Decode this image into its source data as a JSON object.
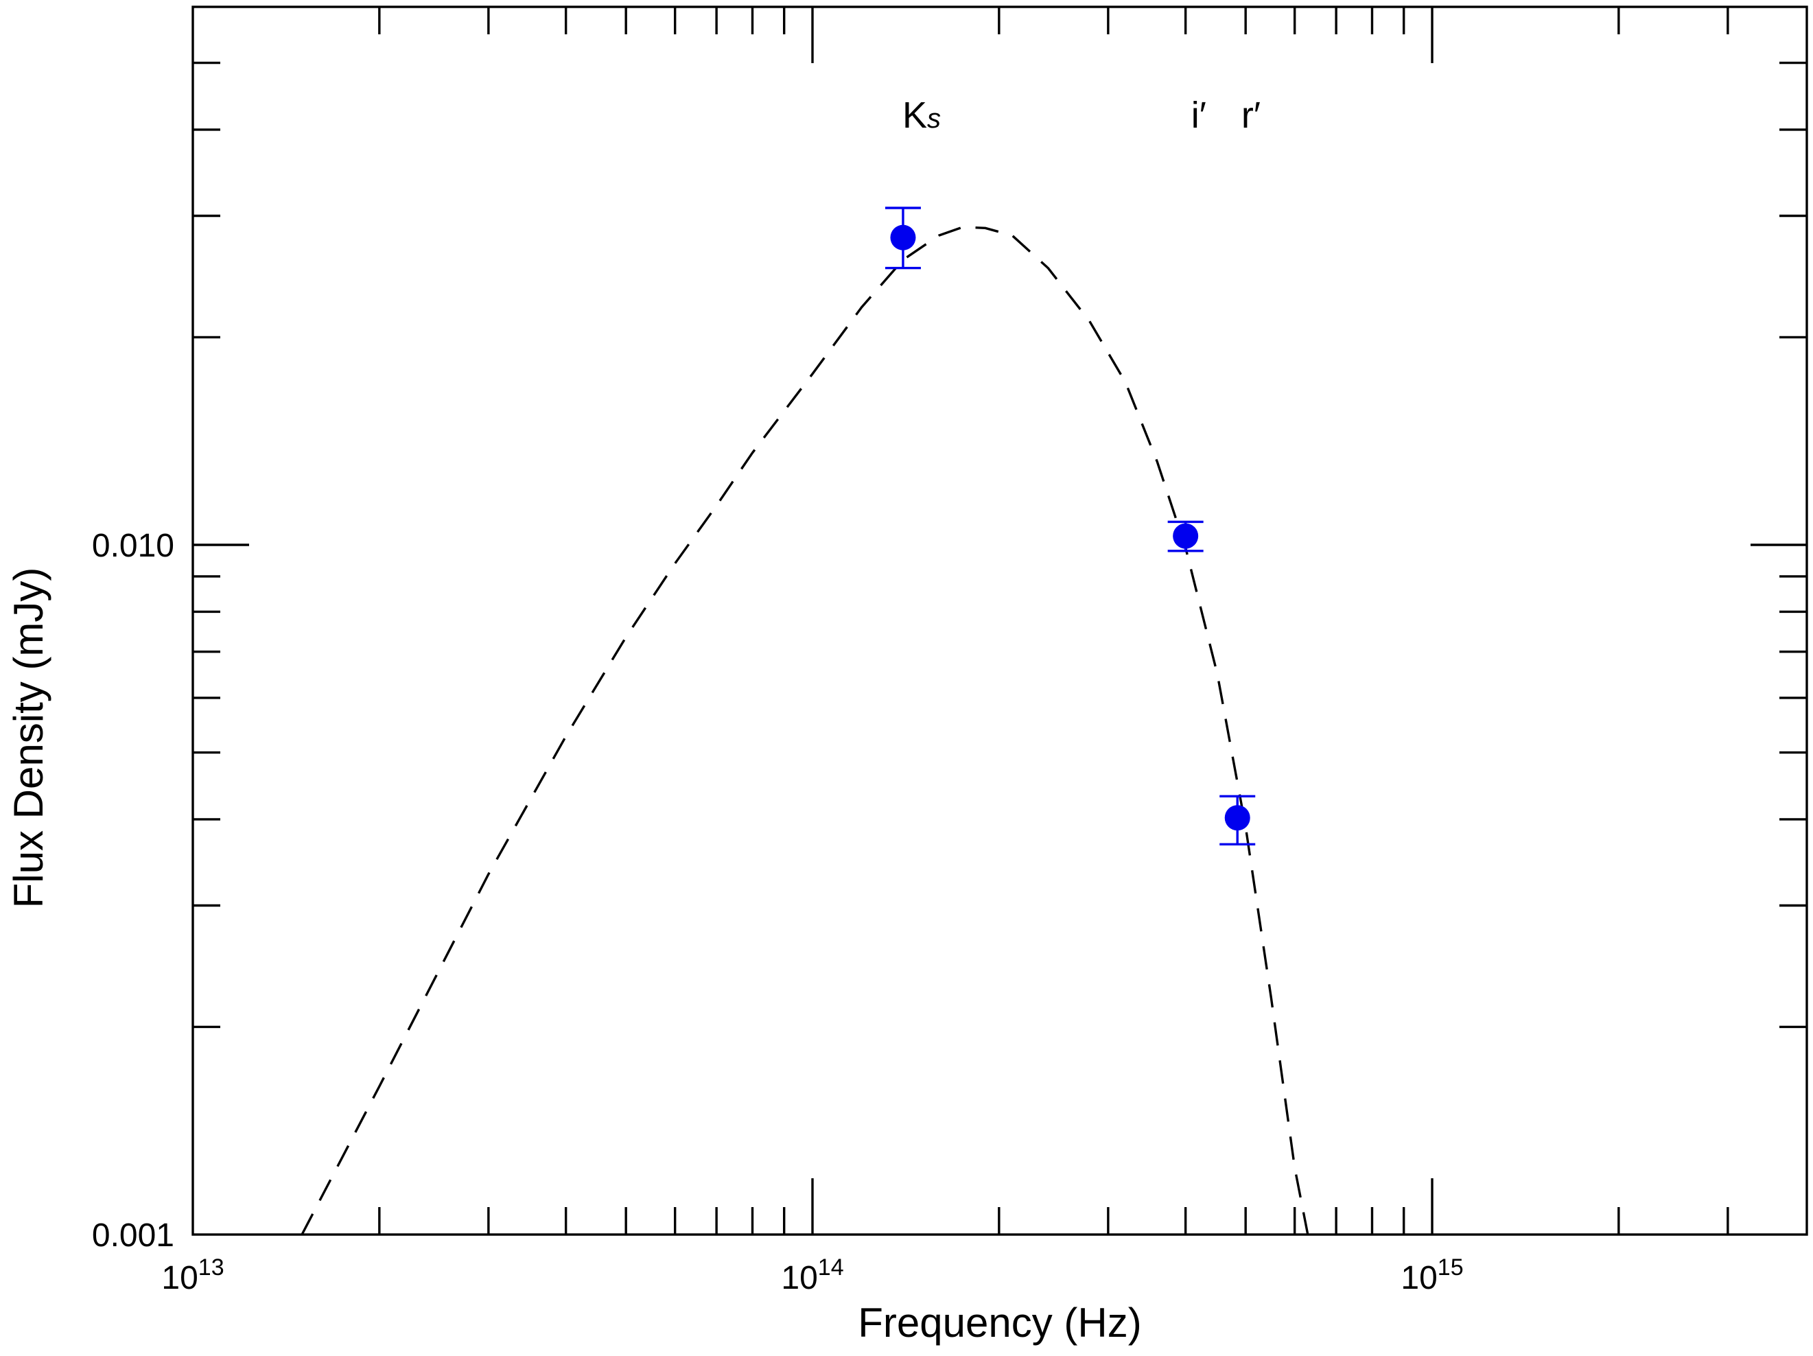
{
  "chart_data": {
    "type": "scatter",
    "title": "",
    "xlabel": "Frequency (Hz)",
    "ylabel": "Flux Density (mJy)",
    "xscale": "log",
    "yscale": "log",
    "xlim": [
      10000000000000.0,
      3900000000000000.0
    ],
    "ylim": [
      0.001,
      0.06
    ],
    "x_tick_labels": [
      {
        "value": 10000000000000.0,
        "base": "10",
        "exp": "13"
      },
      {
        "value": 100000000000000.0,
        "base": "10",
        "exp": "14"
      },
      {
        "value": 1000000000000000.0,
        "base": "10",
        "exp": "15"
      }
    ],
    "y_tick_labels": [
      {
        "value": 0.001,
        "text": "0.001"
      },
      {
        "value": 0.01,
        "text": "0.010"
      }
    ],
    "band_labels": [
      {
        "text": "K",
        "sub": "s",
        "x": 150000000000000.0
      },
      {
        "text": "i′",
        "sub": "",
        "x": 420000000000000.0
      },
      {
        "text": "r′",
        "sub": "",
        "x": 510000000000000.0
      }
    ],
    "series": [
      {
        "kind": "points_with_errorbars",
        "color": "#0000ee",
        "points": [
          {
            "band": "Ks",
            "x": 140000000000000.0,
            "y": 0.0279,
            "y_low": 0.0252,
            "y_high": 0.0308
          },
          {
            "band": "i′",
            "x": 400000000000000.0,
            "y": 0.0103,
            "y_low": 0.0098,
            "y_high": 0.0108
          },
          {
            "band": "r′",
            "x": 485000000000000.0,
            "y": 0.00402,
            "y_low": 0.00368,
            "y_high": 0.00432
          }
        ]
      },
      {
        "kind": "model_curve",
        "style": "dashed",
        "color": "#000000",
        "points": [
          {
            "x": 15000000000000.0,
            "y": 0.001
          },
          {
            "x": 20000000000000.0,
            "y": 0.00164
          },
          {
            "x": 30000000000000.0,
            "y": 0.00333
          },
          {
            "x": 40000000000000.0,
            "y": 0.00528
          },
          {
            "x": 50000000000000.0,
            "y": 0.00735
          },
          {
            "x": 60000000000000.0,
            "y": 0.0094
          },
          {
            "x": 70000000000000.0,
            "y": 0.0114
          },
          {
            "x": 80000000000000.0,
            "y": 0.0136
          },
          {
            "x": 100000000000000.0,
            "y": 0.0177
          },
          {
            "x": 120000000000000.0,
            "y": 0.0221
          },
          {
            "x": 140000000000000.0,
            "y": 0.0259
          },
          {
            "x": 160000000000000.0,
            "y": 0.0281
          },
          {
            "x": 175000000000000.0,
            "y": 0.0289
          },
          {
            "x": 190000000000000.0,
            "y": 0.0288
          },
          {
            "x": 210000000000000.0,
            "y": 0.0281
          },
          {
            "x": 240000000000000.0,
            "y": 0.0252
          },
          {
            "x": 280000000000000.0,
            "y": 0.0211
          },
          {
            "x": 320000000000000.0,
            "y": 0.0172
          },
          {
            "x": 360000000000000.0,
            "y": 0.0132
          },
          {
            "x": 400000000000000.0,
            "y": 0.0099
          },
          {
            "x": 450000000000000.0,
            "y": 0.0065
          },
          {
            "x": 500000000000000.0,
            "y": 0.0039
          },
          {
            "x": 550000000000000.0,
            "y": 0.0022
          },
          {
            "x": 600000000000000.0,
            "y": 0.00125
          },
          {
            "x": 630000000000000.0,
            "y": 0.001
          }
        ]
      }
    ],
    "grid": false,
    "legend": "none"
  }
}
